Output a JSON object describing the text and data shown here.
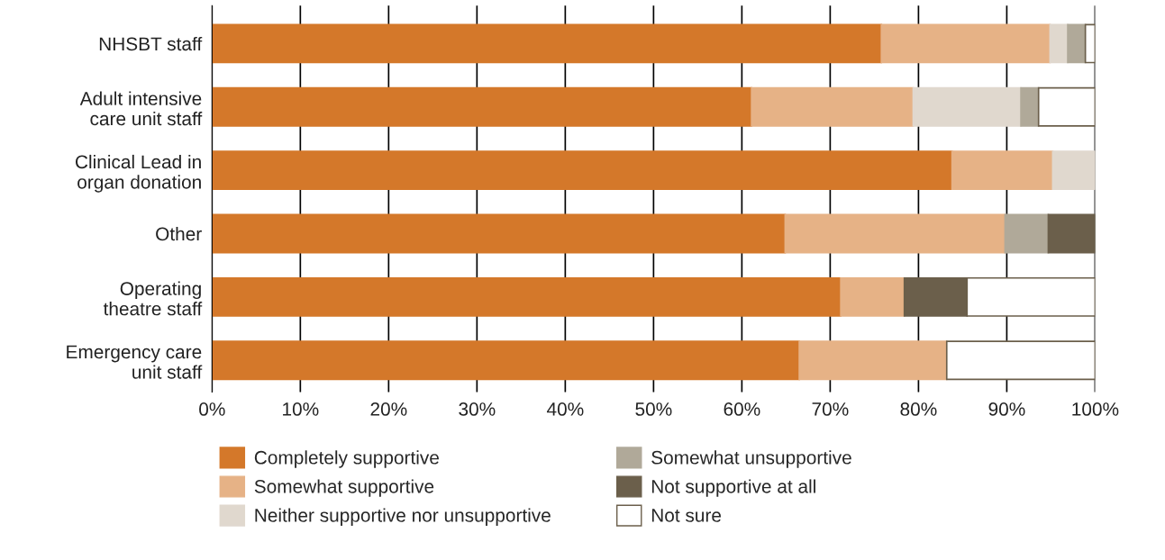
{
  "chart_data": {
    "type": "bar",
    "orientation": "horizontal",
    "stacked": true,
    "categories": [
      "NHSBT staff",
      "Adult intensive\ncare unit staff",
      "Clinical Lead in\norgan donation",
      "Other",
      "Operating\ntheatre staff",
      "Emergency care\nunit staff"
    ],
    "series": [
      {
        "name": "Completely supportive",
        "color": "#d4782a",
        "values": [
          75.8,
          61.1,
          83.8,
          64.9,
          71.2,
          66.5
        ]
      },
      {
        "name": "Somewhat supportive",
        "color": "#e6b286",
        "values": [
          19.1,
          18.3,
          11.4,
          24.9,
          7.2,
          16.7
        ]
      },
      {
        "name": "Neither supportive nor unsupportive",
        "color": "#e0d8ce",
        "values": [
          2.0,
          12.2,
          4.8,
          null,
          null,
          null
        ]
      },
      {
        "name": "Somewhat unsupportive",
        "color": "#b0a999",
        "values": [
          2.0,
          2.0,
          null,
          4.9,
          null,
          null
        ]
      },
      {
        "name": "Not supportive at all",
        "color": "#6b5f4b",
        "values": [
          null,
          null,
          null,
          5.3,
          7.1,
          null
        ]
      },
      {
        "name": "Not sure",
        "color": "#ffffff",
        "values": [
          1.1,
          6.4,
          null,
          null,
          14.5,
          16.8
        ]
      }
    ],
    "xlim": [
      0,
      100
    ],
    "xticks": [
      {
        "value": 0,
        "label": "0%"
      },
      {
        "value": 10,
        "label": "10%"
      },
      {
        "value": 20,
        "label": "20%"
      },
      {
        "value": 30,
        "label": "30%"
      },
      {
        "value": 40,
        "label": "40%"
      },
      {
        "value": 50,
        "label": "50%"
      },
      {
        "value": 60,
        "label": "60%"
      },
      {
        "value": 70,
        "label": "70%"
      },
      {
        "value": 80,
        "label": "80%"
      },
      {
        "value": 90,
        "label": "90%"
      },
      {
        "value": 100,
        "label": "100%"
      }
    ],
    "grid": "x",
    "legend": "bottom"
  }
}
